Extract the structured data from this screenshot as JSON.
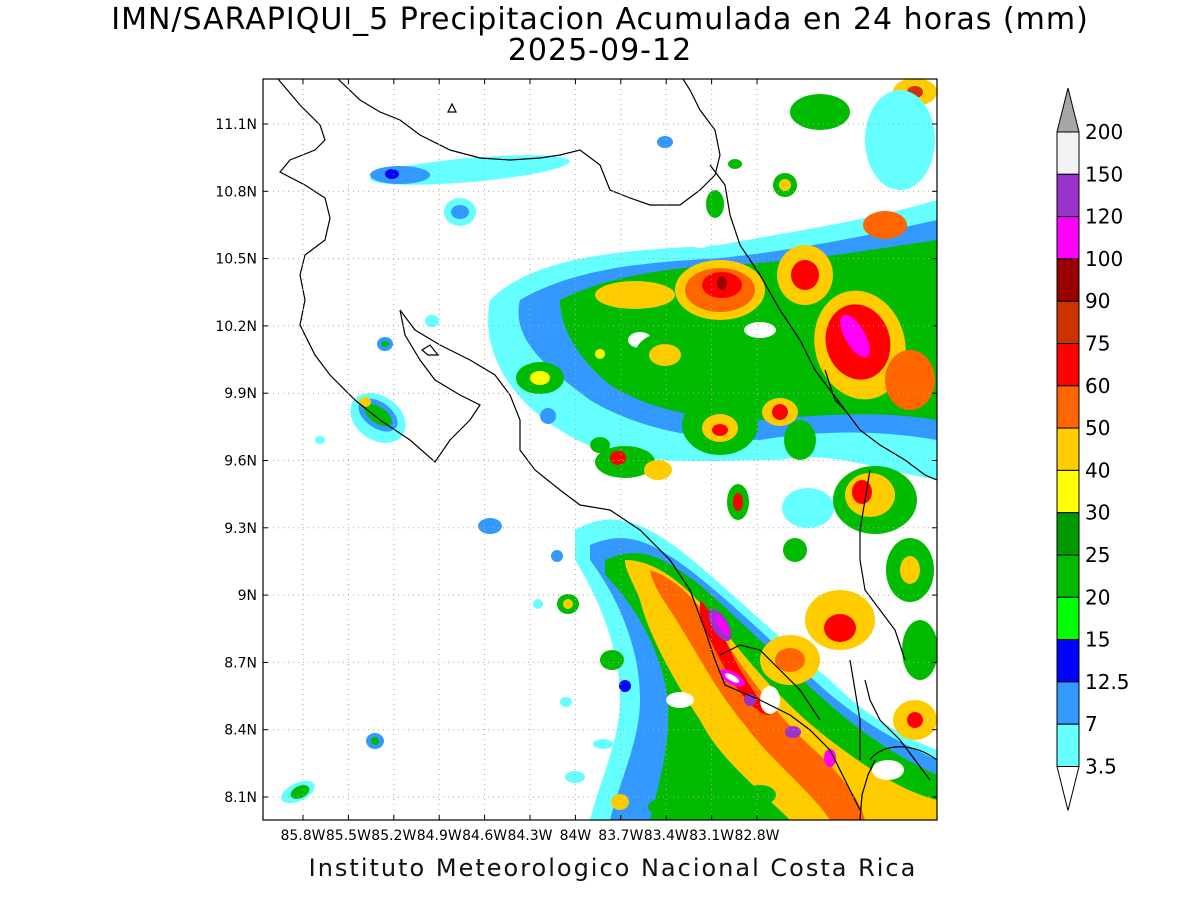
{
  "title_line1": "IMN/SARAPIQUI_5 Precipitacion Acumulada en 24 horas (mm)",
  "title_line2": "2025-09-12",
  "credit": "Instituto Meteorologico Nacional Costa Rica",
  "map": {
    "lat_ticks": [
      "11.1N",
      "10.8N",
      "10.5N",
      "10.2N",
      "9.9N",
      "9.6N",
      "9.3N",
      "9N",
      "8.7N",
      "8.4N",
      "8.1N"
    ],
    "lon_ticks": [
      "85.8W",
      "85.5W",
      "85.2W",
      "84.9W",
      "84.6W",
      "84.3W",
      "84W",
      "83.7W",
      "83.4W",
      "83.1W",
      "82.8W"
    ]
  },
  "legend": {
    "labels": [
      "200",
      "150",
      "120",
      "100",
      "90",
      "75",
      "60",
      "50",
      "40",
      "30",
      "25",
      "20",
      "15",
      "12.5",
      "7",
      "3.5"
    ],
    "colors": [
      "#f2f2f2",
      "#9933cc",
      "#ff00ff",
      "#990000",
      "#cc3300",
      "#ff0000",
      "#ff6600",
      "#ffcc00",
      "#ffff00",
      "#009900",
      "#00bb00",
      "#00ff00",
      "#0000ff",
      "#3399ff",
      "#66ffff"
    ],
    "over_color": "#a6a6a6",
    "under_color": "#ffffff"
  }
}
